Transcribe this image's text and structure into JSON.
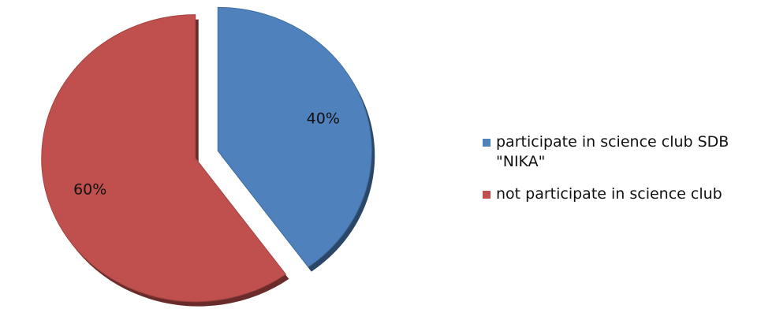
{
  "chart_data": {
    "type": "pie",
    "categories": [
      "participate in science club SDB \"NIKA\"",
      "not participate in science club"
    ],
    "values": [
      40,
      60
    ],
    "data_labels": [
      "40%",
      "60%"
    ],
    "colors": [
      "#4f81bd",
      "#c0504d"
    ],
    "exploded": true,
    "three_d": true,
    "legend_position": "right"
  }
}
